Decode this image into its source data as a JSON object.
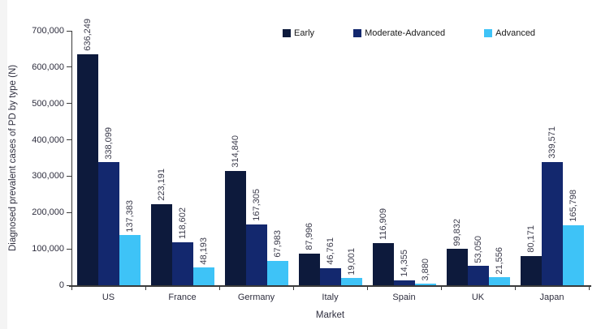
{
  "chart_data": {
    "type": "bar",
    "title": "",
    "xlabel": "Market",
    "ylabel": "Diagnosed prevalent cases of PD by type (N)",
    "categories": [
      "US",
      "France",
      "Germany",
      "Italy",
      "Spain",
      "UK",
      "Japan"
    ],
    "series": [
      {
        "name": "Early",
        "color": "#0d1a3c",
        "values": [
          636249,
          223191,
          314840,
          87996,
          116909,
          99832,
          80171
        ]
      },
      {
        "name": "Moderate-Advanced",
        "color": "#13286e",
        "values": [
          338099,
          118602,
          167305,
          46761,
          14355,
          53050,
          339571
        ]
      },
      {
        "name": "Advanced",
        "color": "#3ec3f7",
        "values": [
          137383,
          48193,
          67983,
          19001,
          3880,
          21556,
          165798
        ]
      }
    ],
    "ylim": [
      0,
      700000
    ],
    "ytick_step": 100000,
    "ytick_labels": [
      "0",
      "100,000",
      "200,000",
      "300,000",
      "400,000",
      "500,000",
      "600,000",
      "700,000"
    ],
    "grid": false,
    "legend_position": "top",
    "value_labels": "rotated-90-above-bars"
  },
  "colors": {
    "axis_line": "#3a3a3a",
    "tick_text": "#2e2e3e",
    "value_label_text": "#3c3c4c",
    "background": "#ffffff",
    "left_strip": "#f4f4f4"
  }
}
